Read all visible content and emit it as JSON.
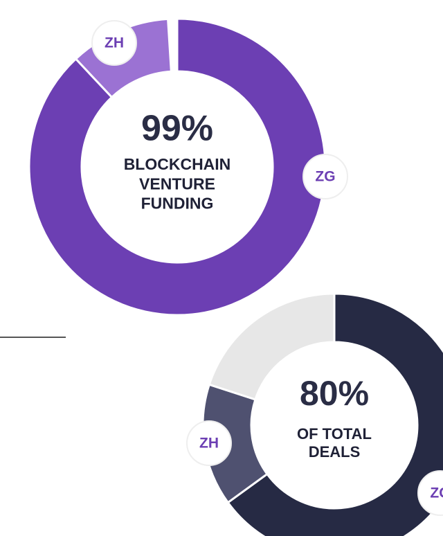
{
  "chart_data": [
    {
      "type": "pie",
      "center_text": "99%",
      "caption_lines": [
        "BLOCKCHAIN",
        "VENTURE",
        "FUNDING"
      ],
      "categories": [
        "ZG",
        "ZH"
      ],
      "values": [
        88,
        11
      ],
      "colors": [
        "#6c3fb3",
        "#9b72d3"
      ]
    },
    {
      "type": "pie",
      "center_text": "80%",
      "caption_lines": [
        "OF TOTAL",
        "DEALS"
      ],
      "categories": [
        "ZG",
        "ZH",
        null
      ],
      "values": [
        65,
        15,
        20
      ],
      "colors": [
        "#262a44",
        "#4f5170",
        "#e7e7e7"
      ]
    }
  ]
}
